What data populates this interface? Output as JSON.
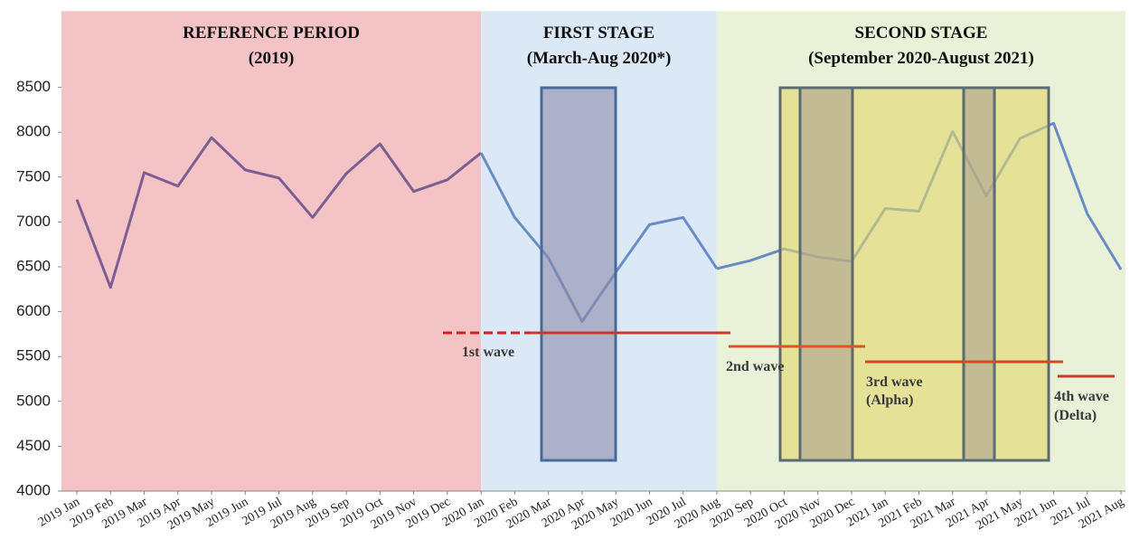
{
  "chart_data": {
    "type": "line",
    "categories": [
      "2019 Jan",
      "2019 Feb",
      "2019 Mar",
      "2019 Apr",
      "2019 May",
      "2019 Jun",
      "2019 Jul",
      "2019 Aug",
      "2019 Sep",
      "2019 Oct",
      "2019 Nov",
      "2019 Dec",
      "2020 Jan",
      "2020 Feb",
      "2020 Mar",
      "2020 Apr",
      "2020 May",
      "2020 Jun",
      "2020 Jul",
      "2020 Aug",
      "2020 Sep",
      "2020 Oct",
      "2020 Nov",
      "2020 Dec",
      "2021 Jan",
      "2021 Feb",
      "2021 Mar",
      "2021 Apr",
      "2021 May",
      "2021 Jun",
      "2021 Jul",
      "2021 Aug"
    ],
    "values": [
      7250,
      6270,
      7550,
      7400,
      7940,
      7580,
      7490,
      7050,
      7540,
      7870,
      7340,
      7470,
      7770,
      7050,
      6600,
      5890,
      6440,
      6970,
      7050,
      6480,
      6570,
      6700,
      6610,
      6560,
      7150,
      7120,
      8010,
      7290,
      7930,
      8100,
      7090,
      6470
    ],
    "ylim": [
      4000,
      9350
    ],
    "yticks": [
      4000,
      4500,
      5000,
      5500,
      6000,
      6500,
      7000,
      7500,
      8000,
      8500
    ],
    "periods": [
      {
        "title": "REFERENCE PERIOD",
        "subtitle": "(2019)",
        "from": "2019 Jan",
        "to": "2020 Jan",
        "color": "#f4c3c6",
        "line_color": "#7b5e93"
      },
      {
        "title": "FIRST STAGE",
        "subtitle": "(March-Aug 2020*)",
        "from": "2020 Jan",
        "to": "2020 Aug",
        "color": "#dbe9f7",
        "line_color": "#6a8cc4"
      },
      {
        "title": "SECOND STAGE",
        "subtitle": "(September 2020-August 2021)",
        "from": "2020 Aug",
        "to": "2021 Aug",
        "color": "#e9f1d8",
        "line_color": "#6a8cc4"
      }
    ],
    "annotations": [
      [
        "1st wave"
      ],
      [
        "2nd wave"
      ],
      [
        "3rd wave",
        "(Alpha)"
      ],
      [
        "4th wave",
        "(Delta)"
      ]
    ]
  }
}
